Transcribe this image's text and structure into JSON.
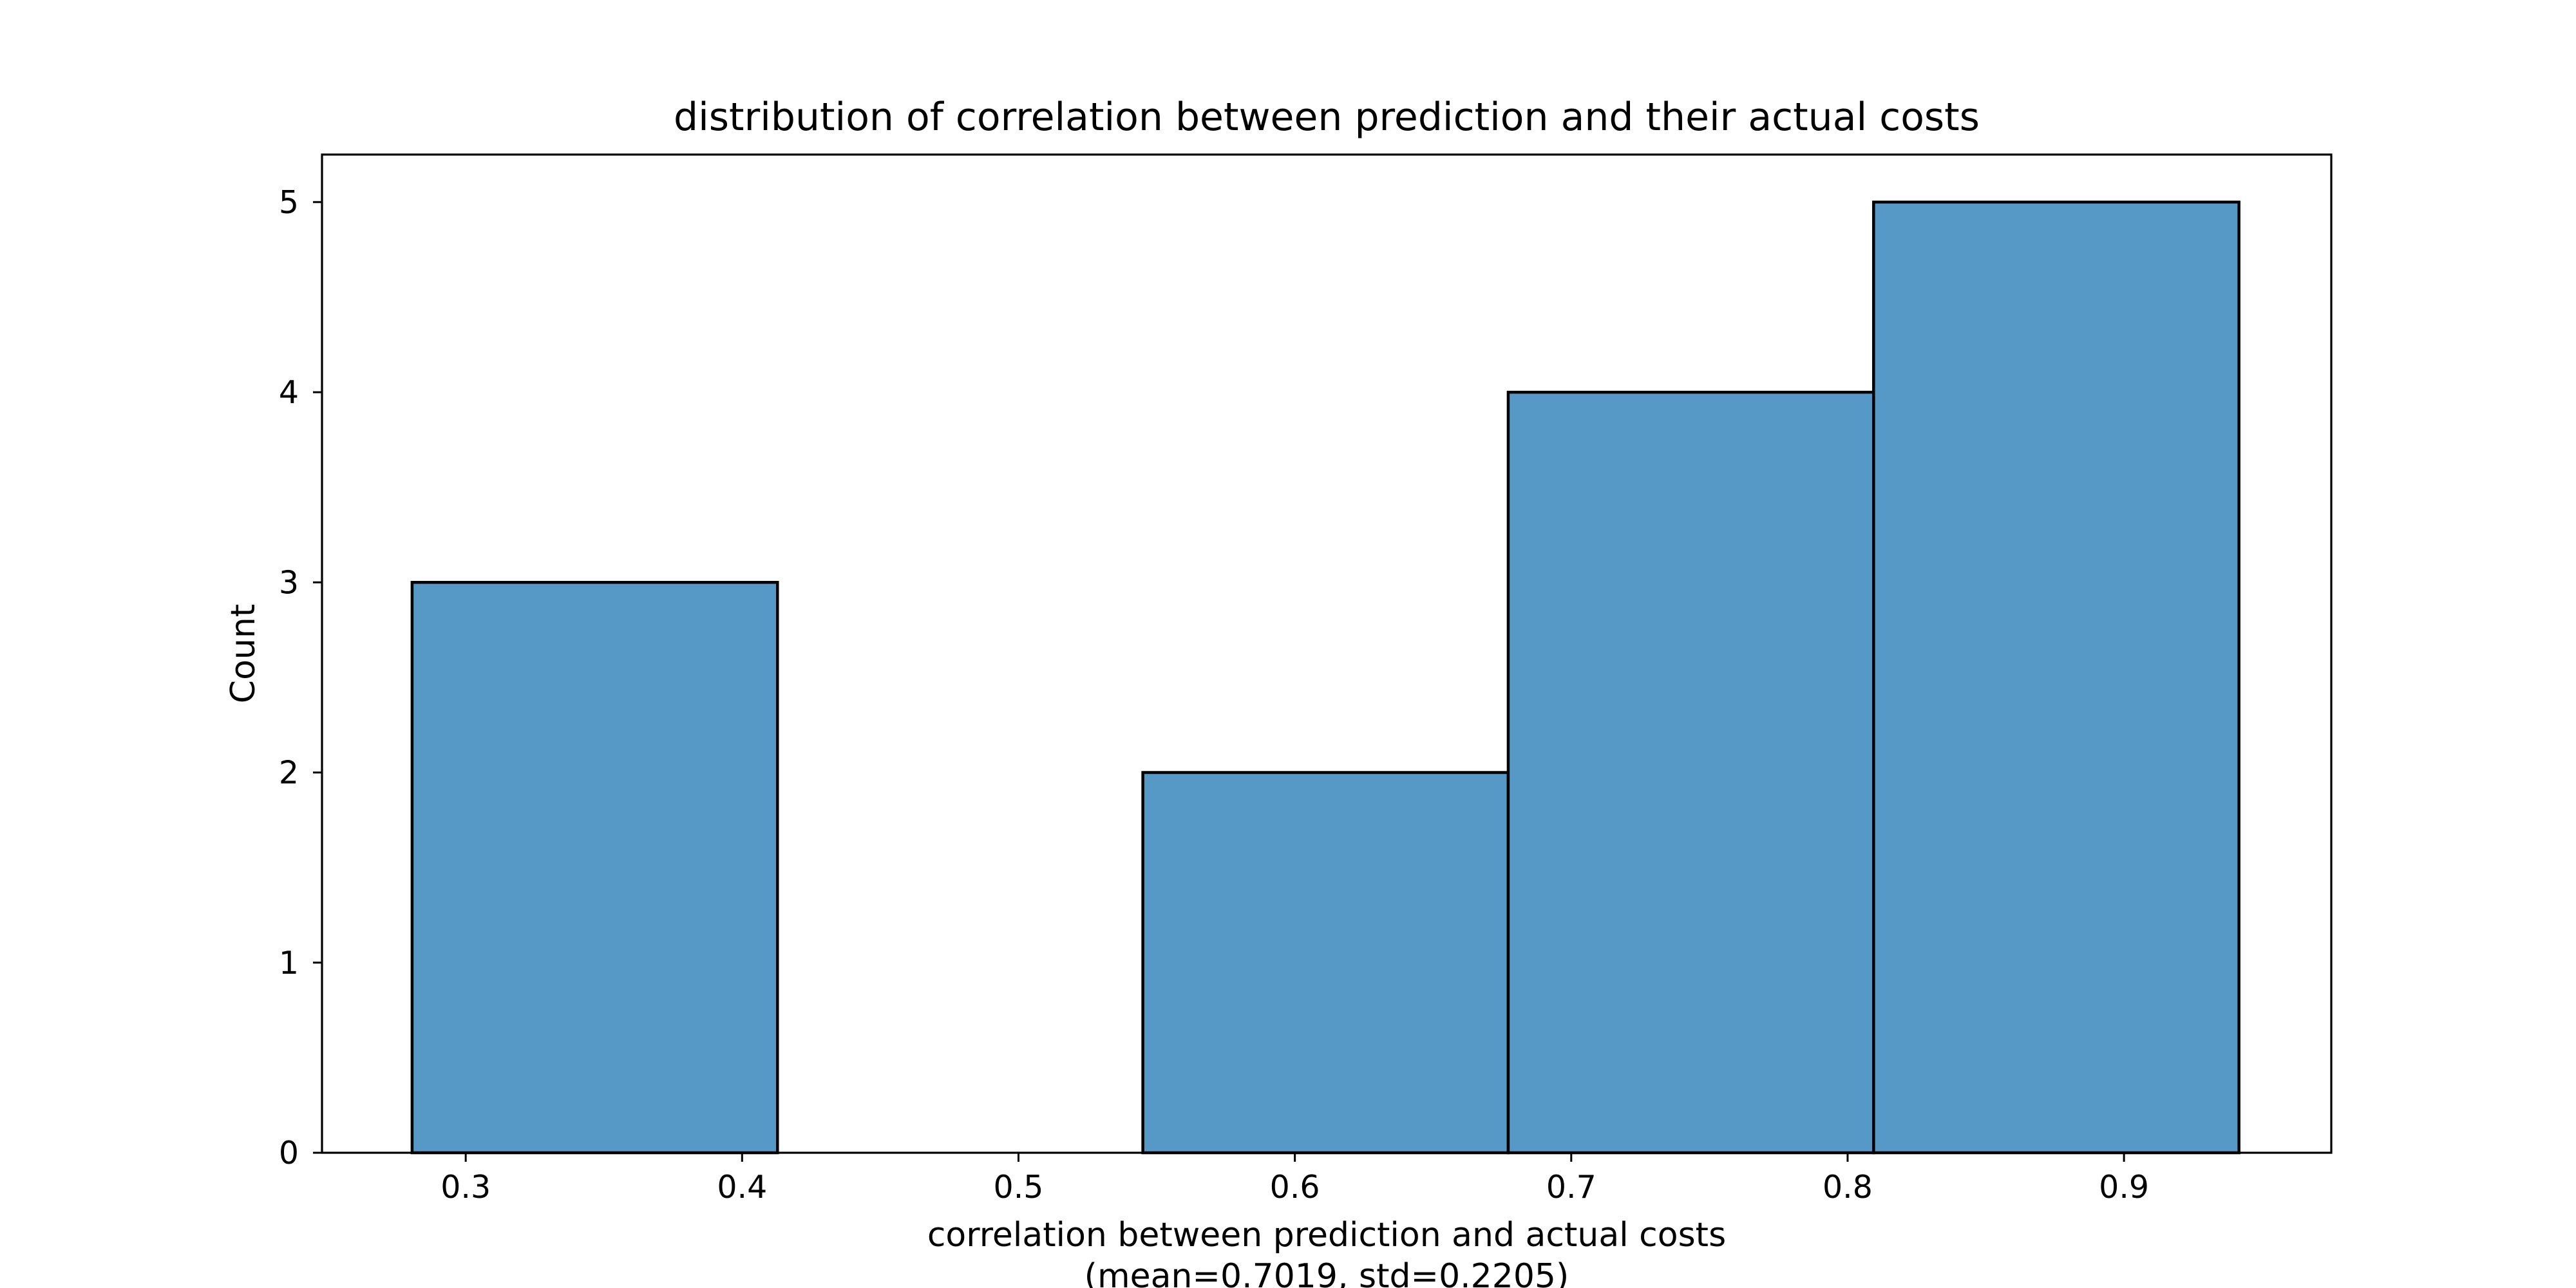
{
  "chart_data": {
    "type": "histogram",
    "title": "distribution of correlation between prediction and their actual costs",
    "xlabel_lines": [
      "correlation between prediction and actual costs",
      "(mean=0.7019, std=0.2205)"
    ],
    "ylabel": "Count",
    "xlim": [
      0.248,
      0.975
    ],
    "ylim": [
      0,
      5.25
    ],
    "x_ticks": [
      "0.3",
      "0.4",
      "0.5",
      "0.6",
      "0.7",
      "0.8",
      "0.9"
    ],
    "y_ticks": [
      "0",
      "1",
      "2",
      "3",
      "4",
      "5"
    ],
    "bins": [
      {
        "start": 0.2806,
        "end": 0.4128,
        "count": 3
      },
      {
        "start": 0.4128,
        "end": 0.545,
        "count": 0
      },
      {
        "start": 0.545,
        "end": 0.6772,
        "count": 2
      },
      {
        "start": 0.6772,
        "end": 0.8094,
        "count": 4
      },
      {
        "start": 0.8094,
        "end": 0.9416,
        "count": 5
      }
    ],
    "bar_color": "#5799c6",
    "edge_color": "#000000",
    "grid": false
  }
}
